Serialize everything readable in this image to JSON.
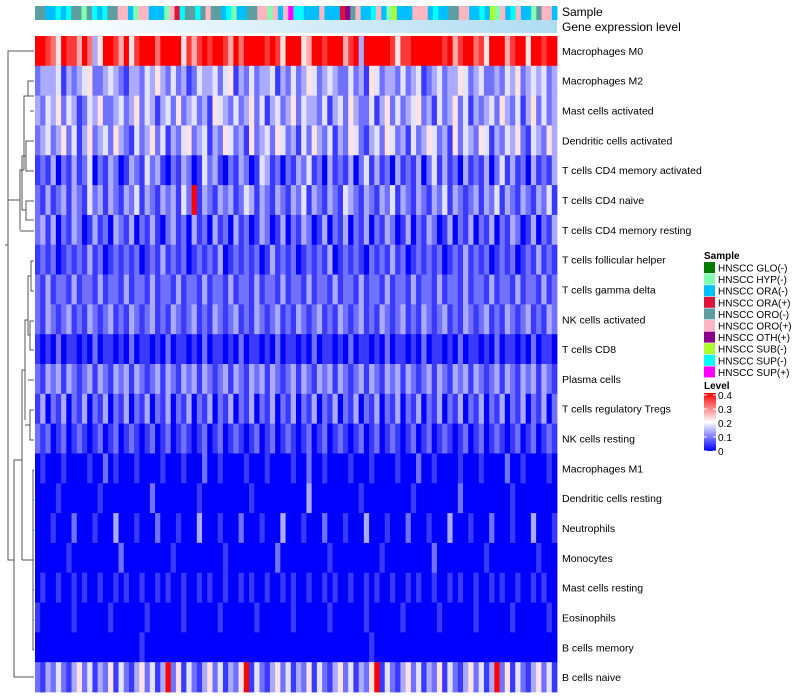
{
  "chart_data": {
    "type": "heatmap",
    "annotation_labels": {
      "sample": "Sample",
      "gene_level": "Gene expression level"
    },
    "gene_level_gradient": [
      "#ffffff",
      "#b0dcf2"
    ],
    "value_encoding": "each digit d in a row string encodes value d/9*0.4",
    "rows": [
      {
        "label": "Macrophages M0",
        "cells": "9987598869735998695899979999586898998697999989859995699899968939999985889999998968997859996899599899"
      },
      {
        "label": "Macrophages M2",
        "cells": "2333413234522343213324353242312433424513242334132423542343224231542332423412342335423422324352343423"
      },
      {
        "label": "Mast cells activated",
        "cells": "3243524312435223423524313425234231543242352413423524332413425322413524234523142352413234253241352423"
      },
      {
        "label": "Dendritic cells activated",
        "cells": "2342352413523425321423524132452341325423152342542314253241325421342542314235423152432541324352143253"
      },
      {
        "label": "T cells CD4 memory activated",
        "cells": "1213021312402132013214231021320142310213201431202132412031213024131203121302413120312130241312031213"
      },
      {
        "label": "T cells CD4 naive",
        "cells": "2131231321423132132413213231429132132312431321321324132132143213213241321321324132123132413213213241"
      },
      {
        "label": "T cells CD4 memory resting",
        "cells": "2313021320131203213021310231203120312031201320130213201302130213021320130213201302130213021320130213"
      },
      {
        "label": "T cells follicular helper",
        "cells": "1212012121312012121201213121201212130121212013121201212130121210212131201212120121312120121201213121"
      },
      {
        "label": "T cells gamma delta",
        "cells": "2131221312213122131221312213122131221312213122131221312213122131221312213122131221312213122131221312"
      },
      {
        "label": "NK cells activated",
        "cells": "2132123121321231213212312132123121321231213212312132123121321231213212312132123121321231213212312132"
      },
      {
        "label": "T cells CD8",
        "cells": "1010201101020110102011010201101020110102011010201101020110102011010201101020110102011010201101020110"
      },
      {
        "label": "Plasma cells",
        "cells": "2132313212313213231321231321323132123132132313212313213231321231321323132123132132313212313213231321"
      },
      {
        "label": "T cells regulatory  Tregs",
        "cells": "1302130213021302130213021302130213021302130213021302130213021302130213021302130213021302130213021302"
      },
      {
        "label": "NK cells resting",
        "cells": "2120120121012012012101201201210120120121012012012101201201210120120121012012012101201201210120120121"
      },
      {
        "label": "Macrophages M1",
        "cells": "0100010000100201000100001000100020010000100010000100200100001000100001000200100001000100002001000010"
      },
      {
        "label": "Dendritic cells resting",
        "cells": "0000100000001000000000200000000100000000010000000000300000000010000000001000000002000000000100000000"
      },
      {
        "label": "Neutrophils",
        "cells": "0001000200010003000100020001000300010002000100030001000200010003000100020001000300010002000100030001"
      },
      {
        "label": "Monocytes",
        "cells": "0000001000000000200000000010000000001000000000200000000010000000001000000000200000000010000000001000"
      },
      {
        "label": "Mast cells resting",
        "cells": "0100100101001001010010010100100101001001010010010100100101001001010010010100100101001001010010010100"
      },
      {
        "label": "Eosinophils",
        "cells": "1000000100000010000001000000100000010000001000000100000010000001000000100000010000001000000100000010"
      },
      {
        "label": "B cells memory",
        "cells": "0000000000000000000010000000000000000000000000000000000000000000100000000000000000000000000000000000"
      },
      {
        "label": "B cells naive",
        "cells": "2132421352413251421352413925142135241325914213524132514213524132591421352413251421352413925142135241"
      }
    ],
    "sample_annotation": "eeccicieebeicieeffcbffcccbfdieeiefeecibcceeffbfcfjiicccfcccdgefccifcbhcccfffcicceeffccichbfcifccbeffc",
    "sample_legend": {
      "title": "Sample",
      "items": [
        {
          "code": "a",
          "label": "HNSCC GLO(-)",
          "color": "#007a00"
        },
        {
          "code": "b",
          "label": "HNSCC HYP(-)",
          "color": "#7fffaf"
        },
        {
          "code": "c",
          "label": "HNSCC ORA(-)",
          "color": "#00bfff"
        },
        {
          "code": "d",
          "label": "HNSCC ORA(+)",
          "color": "#dc143c"
        },
        {
          "code": "e",
          "label": "HNSCC ORO(-)",
          "color": "#5f9ea0"
        },
        {
          "code": "f",
          "label": "HNSCC ORO(+)",
          "color": "#ffb6c1"
        },
        {
          "code": "g",
          "label": "HNSCC OTH(+)",
          "color": "#8b008b"
        },
        {
          "code": "h",
          "label": "HNSCC SUB(-)",
          "color": "#adff2f"
        },
        {
          "code": "i",
          "label": "HNSCC SUP(-)",
          "color": "#00ffff"
        },
        {
          "code": "j",
          "label": "HNSCC SUP(+)",
          "color": "#ff00ff"
        }
      ]
    },
    "level_legend": {
      "title": "Level",
      "ticks": [
        "0.4",
        "0.3",
        "0.2",
        "0.1",
        "0"
      ],
      "range": [
        0,
        0.4
      ],
      "colors": {
        "low": "#0000ff",
        "mid": "#ffffff",
        "high": "#ff0000"
      }
    }
  }
}
